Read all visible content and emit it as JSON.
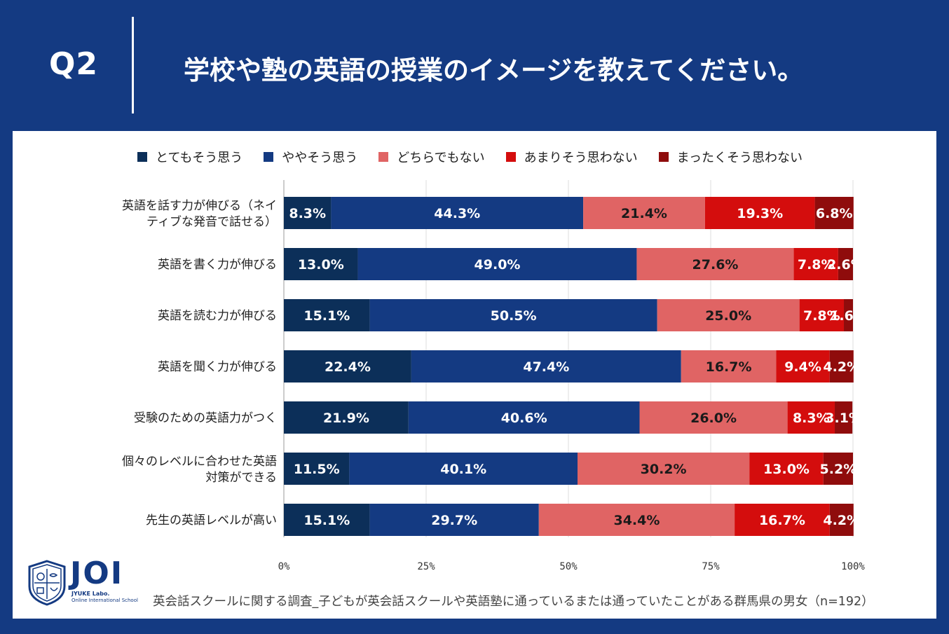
{
  "header": {
    "qnum": "Q2",
    "question": "学校や塾の英語の授業のイメージを教えてください。"
  },
  "legend": [
    {
      "label": "とてもそう思う",
      "color": "#0c2f59"
    },
    {
      "label": "ややそう思う",
      "color": "#143a82"
    },
    {
      "label": "どちらでもない",
      "color": "#e06464"
    },
    {
      "label": "あまりそう思わない",
      "color": "#d40d0d"
    },
    {
      "label": "まったくそう思わない",
      "color": "#8f0c0c"
    }
  ],
  "chart_data": {
    "type": "bar",
    "orientation": "horizontal",
    "stacked": true,
    "categories": [
      [
        "英語を話す力が伸びる（ネイ",
        "ティブな発音で話せる）"
      ],
      [
        "英語を書く力が伸びる"
      ],
      [
        "英語を読む力が伸びる"
      ],
      [
        "英語を聞く力が伸びる"
      ],
      [
        "受験のための英語力がつく"
      ],
      [
        "個々のレベルに合わせた英語",
        "対策ができる"
      ],
      [
        "先生の英語レベルが高い"
      ]
    ],
    "series": [
      {
        "name": "とてもそう思う",
        "values": [
          8.3,
          13.0,
          15.1,
          22.4,
          21.9,
          11.5,
          15.1
        ]
      },
      {
        "name": "ややそう思う",
        "values": [
          44.3,
          49.0,
          50.5,
          47.4,
          40.6,
          40.1,
          29.7
        ]
      },
      {
        "name": "どちらでもない",
        "values": [
          21.4,
          27.6,
          25.0,
          16.7,
          26.0,
          30.2,
          34.4
        ]
      },
      {
        "name": "あまりそう思わない",
        "values": [
          19.3,
          7.8,
          7.8,
          9.4,
          8.3,
          13.0,
          16.7
        ]
      },
      {
        "name": "まったくそう思わない",
        "values": [
          6.8,
          2.6,
          1.6,
          4.2,
          3.1,
          5.2,
          4.2
        ]
      }
    ],
    "labels": [
      [
        "8.3%",
        "44.3%",
        "21.4%",
        "19.3%",
        "6.8%"
      ],
      [
        "13.0%",
        "49.0%",
        "27.6%",
        "7.8%",
        "2.6%"
      ],
      [
        "15.1%",
        "50.5%",
        "25.0%",
        "7.8%",
        "1.6%"
      ],
      [
        "22.4%",
        "47.4%",
        "16.7%",
        "9.4%",
        "4.2%"
      ],
      [
        "21.9%",
        "40.6%",
        "26.0%",
        "8.3%",
        "3.1%"
      ],
      [
        "11.5%",
        "40.1%",
        "30.2%",
        "13.0%",
        "5.2%"
      ],
      [
        "15.1%",
        "29.7%",
        "34.4%",
        "16.7%",
        "4.2%"
      ]
    ],
    "xlim": [
      0,
      100
    ],
    "xticks": [
      "0%",
      "25%",
      "50%",
      "75%",
      "100%"
    ],
    "colors": [
      "#0c2f59",
      "#143a82",
      "#e06464",
      "#d40d0d",
      "#8f0c0c"
    ],
    "grid": true,
    "legend_position": "top"
  },
  "footer": {
    "note": "英会話スクールに関する調査_子どもが英会話スクールや英語塾に通っているまたは通っていたことがある群馬県の男女（n=192）",
    "logo_text": "JOI",
    "logo_sub1": "JYUKE Labo.",
    "logo_sub2": "Online International School"
  }
}
